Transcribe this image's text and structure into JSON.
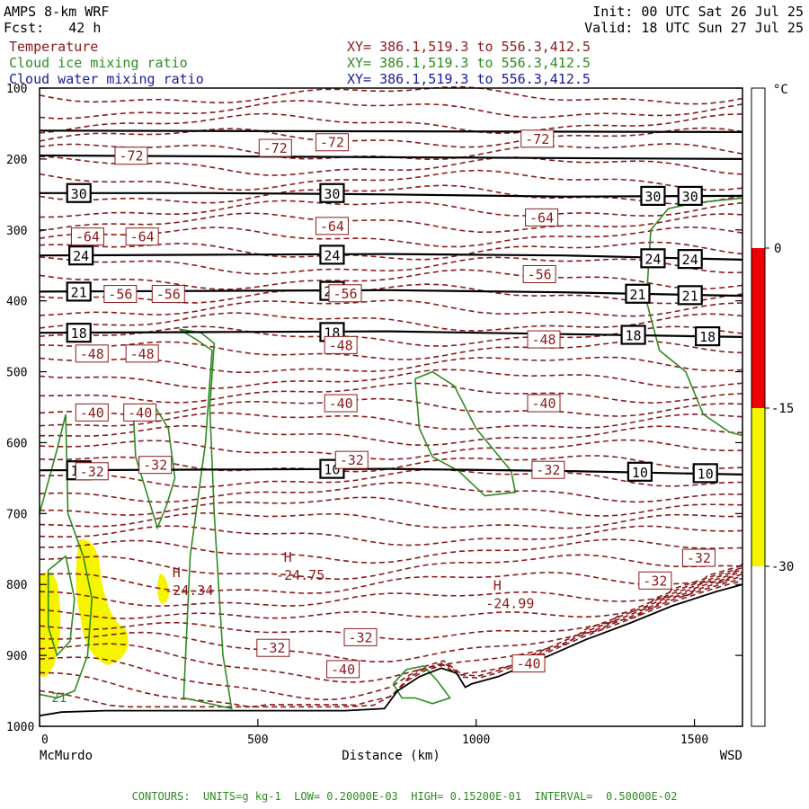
{
  "header": {
    "left": [
      "AMPS 8-km WRF",
      "Fcst:   42 h"
    ],
    "right": [
      "Init: 00 UTC Sat 26 Jul 25",
      "Valid: 18 UTC Sun 27 Jul 25"
    ],
    "fields": [
      {
        "name": "Temperature",
        "xy": "XY= 386.1,519.3 to 556.3,412.5",
        "color": "#8b1a1a"
      },
      {
        "name": "Cloud ice mixing ratio",
        "xy": "XY= 386.1,519.3 to 556.3,412.5",
        "color": "#2e8b22"
      },
      {
        "name": "Cloud water mixing ratio",
        "xy": "XY= 386.1,519.3 to 556.3,412.5",
        "color": "#1a1a9a"
      }
    ]
  },
  "footer": "CONTOURS:  UNITS=g kg-1  LOW= 0.20000E-03  HIGH= 0.15200E-01  INTERVAL=  0.50000E-02",
  "colors": {
    "temperature": "#8b1a1a",
    "ice": "#2e8b22",
    "black_contour": "#000000",
    "red": "#ee0000",
    "yellow": "#f5f500"
  },
  "chart_data": {
    "type": "contour-cross-section",
    "xlabel": "Distance (km)",
    "ylabel": "",
    "xlim": [
      0,
      1610
    ],
    "ylim": [
      1000,
      100
    ],
    "x_ticks": [
      0,
      500,
      1000,
      1500
    ],
    "y_ticks": [
      100,
      200,
      300,
      400,
      500,
      600,
      700,
      800,
      900,
      1000
    ],
    "x_endpoint_labels": {
      "left": "McMurdo",
      "right": "WSD"
    },
    "colorbar": {
      "unit": "°C",
      "tick_labels": [
        "0",
        "-15",
        "-30"
      ],
      "bands": [
        {
          "from": 0,
          "to": -15,
          "color": "#ee0000"
        },
        {
          "from": -15,
          "to": -30,
          "color": "#f5f500"
        }
      ]
    },
    "black_contours": [
      {
        "label": "30",
        "y": [
          248,
          248,
          250,
          253,
          252
        ],
        "x": [
          0,
          400,
          800,
          1200,
          1610
        ],
        "labels_at": [
          [
            90,
            248
          ],
          [
            670,
            248
          ],
          [
            1405,
            252
          ],
          [
            1490,
            252
          ]
        ]
      },
      {
        "label": "24",
        "y": [
          336,
          335,
          334,
          336,
          342
        ],
        "x": [
          0,
          400,
          800,
          1200,
          1610
        ],
        "labels_at": [
          [
            95,
            336
          ],
          [
            670,
            335
          ],
          [
            1405,
            340
          ],
          [
            1490,
            341
          ]
        ]
      },
      {
        "label": "21",
        "y": [
          387,
          386,
          385,
          388,
          393
        ],
        "x": [
          0,
          400,
          800,
          1200,
          1610
        ],
        "labels_at": [
          [
            90,
            387
          ],
          [
            670,
            386
          ],
          [
            1370,
            390
          ],
          [
            1490,
            392
          ]
        ]
      },
      {
        "label": "18",
        "y": [
          445,
          444,
          443,
          447,
          451
        ],
        "x": [
          0,
          400,
          800,
          1200,
          1610
        ],
        "labels_at": [
          [
            90,
            445
          ],
          [
            670,
            444
          ],
          [
            1360,
            448
          ],
          [
            1530,
            450
          ]
        ]
      },
      {
        "label": "10",
        "y": [
          639,
          638,
          637,
          640,
          645
        ],
        "x": [
          0,
          400,
          800,
          1200,
          1610
        ],
        "labels_at": [
          [
            90,
            639
          ],
          [
            670,
            637
          ],
          [
            1375,
            641
          ],
          [
            1525,
            643
          ]
        ]
      }
    ],
    "top_lines_y": [
      {
        "x": [
          0,
          1610
        ],
        "y": [
          195,
          200
        ]
      },
      {
        "x": [
          0,
          1610
        ],
        "y": [
          160,
          162
        ]
      }
    ],
    "temperature_labels": [
      {
        "text": "-72",
        "x": 210,
        "y": 196
      },
      {
        "text": "-72",
        "x": 540,
        "y": 185
      },
      {
        "text": "-72",
        "x": 670,
        "y": 177
      },
      {
        "text": "-72",
        "x": 1140,
        "y": 172
      },
      {
        "text": "-64",
        "x": 110,
        "y": 310
      },
      {
        "text": "-64",
        "x": 235,
        "y": 310
      },
      {
        "text": "-64",
        "x": 670,
        "y": 295
      },
      {
        "text": "-64",
        "x": 1150,
        "y": 283
      },
      {
        "text": "-56",
        "x": 185,
        "y": 391
      },
      {
        "text": "-56",
        "x": 295,
        "y": 391
      },
      {
        "text": "-56",
        "x": 700,
        "y": 390
      },
      {
        "text": "-56",
        "x": 1145,
        "y": 363
      },
      {
        "text": "-48",
        "x": 120,
        "y": 475
      },
      {
        "text": "-48",
        "x": 235,
        "y": 475
      },
      {
        "text": "-48",
        "x": 690,
        "y": 463
      },
      {
        "text": "-48",
        "x": 1155,
        "y": 455
      },
      {
        "text": "-40",
        "x": 120,
        "y": 558
      },
      {
        "text": "-40",
        "x": 230,
        "y": 558
      },
      {
        "text": "-40",
        "x": 690,
        "y": 545
      },
      {
        "text": "-40",
        "x": 1155,
        "y": 545
      },
      {
        "text": "-32",
        "x": 120,
        "y": 641
      },
      {
        "text": "-32",
        "x": 265,
        "y": 632
      },
      {
        "text": "-32",
        "x": 715,
        "y": 625
      },
      {
        "text": "-32",
        "x": 1165,
        "y": 639
      },
      {
        "text": "-32",
        "x": 1510,
        "y": 763
      },
      {
        "text": "-32",
        "x": 1410,
        "y": 795
      },
      {
        "text": "-32",
        "x": 535,
        "y": 890
      },
      {
        "text": "-32",
        "x": 735,
        "y": 875
      },
      {
        "text": "-40",
        "x": 695,
        "y": 920
      },
      {
        "text": "-40",
        "x": 1120,
        "y": 912
      }
    ],
    "extrema": [
      {
        "symbol": "H",
        "value": "-24.34",
        "x": 330,
        "y": 800
      },
      {
        "symbol": "H",
        "value": "-24.75",
        "x": 585,
        "y": 778
      },
      {
        "symbol": "H",
        "value": "-24.99",
        "x": 1065,
        "y": 818
      }
    ],
    "ice_contour_label": {
      "text": "21",
      "x": 45,
      "y": 958
    }
  }
}
